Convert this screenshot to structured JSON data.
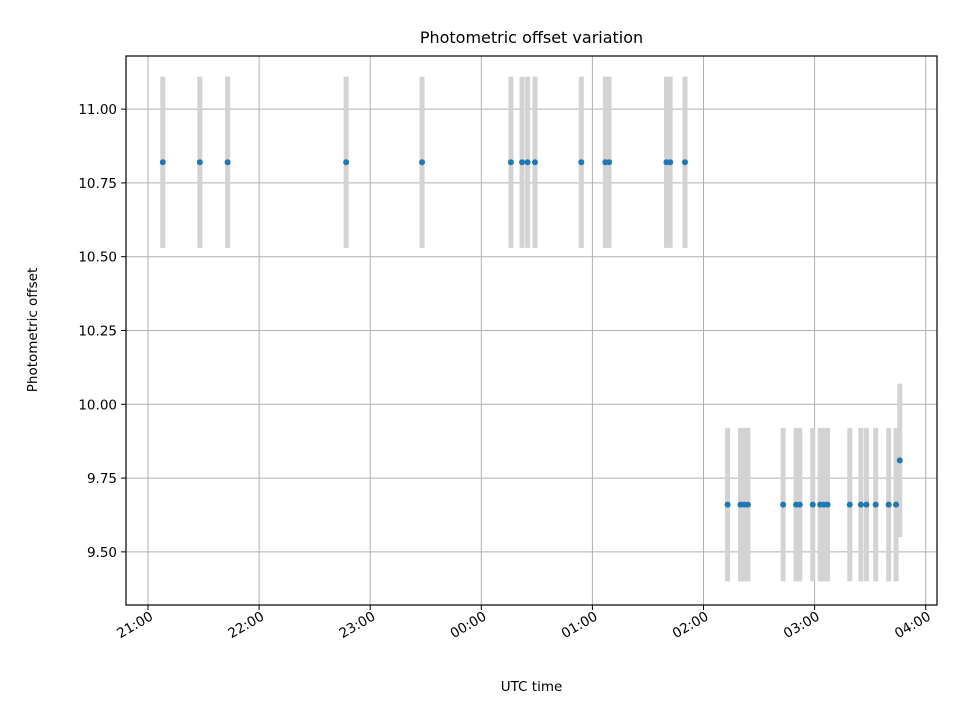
{
  "chart_data": {
    "type": "scatter",
    "title": "Photometric offset variation",
    "xlabel": "UTC time",
    "ylabel": "Photometric offset",
    "x_axis": "time (hours since 21:00 UTC, ticks labelled HH:MM)",
    "xlim_labels": [
      "21:00",
      "04:00"
    ],
    "xticks": [
      {
        "label": "21:00",
        "t": "21:00"
      },
      {
        "label": "22:00",
        "t": "22:00"
      },
      {
        "label": "23:00",
        "t": "23:00"
      },
      {
        "label": "00:00",
        "t": "00:00"
      },
      {
        "label": "01:00",
        "t": "01:00"
      },
      {
        "label": "02:00",
        "t": "02:00"
      },
      {
        "label": "03:00",
        "t": "03:00"
      },
      {
        "label": "04:00",
        "t": "04:00"
      }
    ],
    "ylim": [
      9.32,
      11.18
    ],
    "yticks": [
      "9.50",
      "9.75",
      "10.00",
      "10.25",
      "10.50",
      "10.75",
      "11.00"
    ],
    "ytick_values": [
      9.5,
      9.75,
      10.0,
      10.25,
      10.5,
      10.75,
      11.0
    ],
    "grid": true,
    "marker_color": "#1f77b4",
    "errorbar_color": "#d3d3d3",
    "points": [
      {
        "t": "21:08",
        "y": 10.82,
        "err": 0.29
      },
      {
        "t": "21:28",
        "y": 10.82,
        "err": 0.29
      },
      {
        "t": "21:43",
        "y": 10.82,
        "err": 0.29
      },
      {
        "t": "22:47",
        "y": 10.82,
        "err": 0.29
      },
      {
        "t": "23:28",
        "y": 10.82,
        "err": 0.29
      },
      {
        "t": "00:16",
        "y": 10.82,
        "err": 0.29
      },
      {
        "t": "00:22",
        "y": 10.82,
        "err": 0.29
      },
      {
        "t": "00:25",
        "y": 10.82,
        "err": 0.29
      },
      {
        "t": "00:29",
        "y": 10.82,
        "err": 0.29
      },
      {
        "t": "00:54",
        "y": 10.82,
        "err": 0.29
      },
      {
        "t": "01:07",
        "y": 10.82,
        "err": 0.29
      },
      {
        "t": "01:09",
        "y": 10.82,
        "err": 0.29
      },
      {
        "t": "01:40",
        "y": 10.82,
        "err": 0.29
      },
      {
        "t": "01:42",
        "y": 10.82,
        "err": 0.29
      },
      {
        "t": "01:50",
        "y": 10.82,
        "err": 0.29
      },
      {
        "t": "02:13",
        "y": 9.66,
        "err": 0.26
      },
      {
        "t": "02:20",
        "y": 9.66,
        "err": 0.26
      },
      {
        "t": "02:22",
        "y": 9.66,
        "err": 0.26
      },
      {
        "t": "02:24",
        "y": 9.66,
        "err": 0.26
      },
      {
        "t": "02:43",
        "y": 9.66,
        "err": 0.26
      },
      {
        "t": "02:50",
        "y": 9.66,
        "err": 0.26
      },
      {
        "t": "02:52",
        "y": 9.66,
        "err": 0.26
      },
      {
        "t": "02:59",
        "y": 9.66,
        "err": 0.26
      },
      {
        "t": "03:03",
        "y": 9.66,
        "err": 0.26
      },
      {
        "t": "03:05",
        "y": 9.66,
        "err": 0.26
      },
      {
        "t": "03:07",
        "y": 9.66,
        "err": 0.26
      },
      {
        "t": "03:19",
        "y": 9.66,
        "err": 0.26
      },
      {
        "t": "03:25",
        "y": 9.66,
        "err": 0.26
      },
      {
        "t": "03:28",
        "y": 9.66,
        "err": 0.26
      },
      {
        "t": "03:33",
        "y": 9.66,
        "err": 0.26
      },
      {
        "t": "03:40",
        "y": 9.66,
        "err": 0.26
      },
      {
        "t": "03:44",
        "y": 9.66,
        "err": 0.26
      },
      {
        "t": "03:46",
        "y": 9.81,
        "err": 0.26
      }
    ]
  }
}
